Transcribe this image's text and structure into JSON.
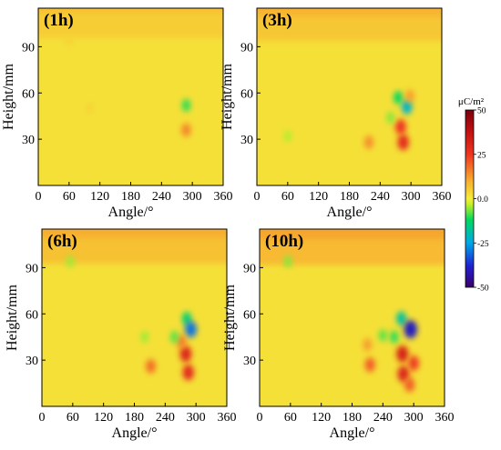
{
  "chart_data": [
    {
      "type": "heatmap",
      "title": "(1h)",
      "xlabel": "Angle/°",
      "ylabel": "Height/mm",
      "xlim": [
        0,
        360
      ],
      "ylim": [
        0,
        115
      ],
      "x_ticks": [
        0,
        60,
        120,
        180,
        240,
        300,
        360
      ],
      "y_ticks": [
        30,
        60,
        90
      ],
      "base_value": 2,
      "top_band": [
        {
          "y_from": 108,
          "y_to": 115,
          "value": 7
        },
        {
          "y_from": 98,
          "y_to": 108,
          "value": 5
        }
      ],
      "features": [
        {
          "x": 288,
          "y": 52,
          "value": -10
        },
        {
          "x": 288,
          "y": 36,
          "value": 15
        },
        {
          "x": 100,
          "y": 50,
          "value": 4
        },
        {
          "x": 60,
          "y": 94,
          "value": 4
        }
      ]
    },
    {
      "type": "heatmap",
      "title": "(3h)",
      "xlabel": "Angle/°",
      "ylabel": "Height/mm",
      "xlim": [
        0,
        360
      ],
      "ylim": [
        0,
        115
      ],
      "x_ticks": [
        0,
        60,
        120,
        180,
        240,
        300,
        360
      ],
      "y_ticks": [
        30,
        60,
        90
      ],
      "base_value": 2,
      "top_band": [
        {
          "y_from": 106,
          "y_to": 115,
          "value": 9
        },
        {
          "y_from": 96,
          "y_to": 106,
          "value": 6
        }
      ],
      "features": [
        {
          "x": 275,
          "y": 57,
          "value": -12
        },
        {
          "x": 292,
          "y": 51,
          "value": -22
        },
        {
          "x": 280,
          "y": 38,
          "value": 25
        },
        {
          "x": 285,
          "y": 28,
          "value": 28
        },
        {
          "x": 298,
          "y": 58,
          "value": 12
        },
        {
          "x": 260,
          "y": 44,
          "value": -6
        },
        {
          "x": 218,
          "y": 28,
          "value": 14
        },
        {
          "x": 60,
          "y": 32,
          "value": -4
        }
      ]
    },
    {
      "type": "heatmap",
      "title": "(6h)",
      "xlabel": "Angle/°",
      "ylabel": "Height/mm",
      "xlim": [
        0,
        360
      ],
      "ylim": [
        0,
        115
      ],
      "x_ticks": [
        0,
        60,
        120,
        180,
        240,
        300,
        360
      ],
      "y_ticks": [
        30,
        60,
        90
      ],
      "base_value": 2,
      "top_band": [
        {
          "y_from": 106,
          "y_to": 115,
          "value": 10
        },
        {
          "y_from": 95,
          "y_to": 106,
          "value": 7
        }
      ],
      "features": [
        {
          "x": 282,
          "y": 57,
          "value": -14
        },
        {
          "x": 290,
          "y": 50,
          "value": -30
        },
        {
          "x": 280,
          "y": 34,
          "value": 30
        },
        {
          "x": 285,
          "y": 22,
          "value": 28
        },
        {
          "x": 272,
          "y": 42,
          "value": 16
        },
        {
          "x": 258,
          "y": 45,
          "value": -8
        },
        {
          "x": 212,
          "y": 26,
          "value": 18
        },
        {
          "x": 200,
          "y": 45,
          "value": -5
        },
        {
          "x": 55,
          "y": 94,
          "value": -5
        }
      ]
    },
    {
      "type": "heatmap",
      "title": "(10h)",
      "xlabel": "Angle/°",
      "ylabel": "Height/mm",
      "xlim": [
        0,
        360
      ],
      "ylim": [
        0,
        115
      ],
      "x_ticks": [
        0,
        60,
        120,
        180,
        240,
        300,
        360
      ],
      "y_ticks": [
        30,
        60,
        90
      ],
      "base_value": 2,
      "top_band": [
        {
          "y_from": 105,
          "y_to": 115,
          "value": 11
        },
        {
          "y_from": 94,
          "y_to": 105,
          "value": 8
        }
      ],
      "features": [
        {
          "x": 276,
          "y": 57,
          "value": -18
        },
        {
          "x": 294,
          "y": 50,
          "value": -40
        },
        {
          "x": 278,
          "y": 34,
          "value": 32
        },
        {
          "x": 280,
          "y": 21,
          "value": 30
        },
        {
          "x": 300,
          "y": 28,
          "value": 24
        },
        {
          "x": 292,
          "y": 14,
          "value": 20
        },
        {
          "x": 262,
          "y": 45,
          "value": -10
        },
        {
          "x": 240,
          "y": 46,
          "value": -8
        },
        {
          "x": 215,
          "y": 27,
          "value": 20
        },
        {
          "x": 210,
          "y": 40,
          "value": 12
        },
        {
          "x": 55,
          "y": 94,
          "value": -6
        }
      ]
    }
  ],
  "colorbar": {
    "unit_label": "μC/m²",
    "ticks": [
      50,
      25,
      0.0,
      -25,
      -50
    ],
    "tick_labels": [
      "50",
      "25",
      "0.0",
      "-25",
      "-50"
    ],
    "range": [
      -50,
      50
    ],
    "stops": [
      {
        "value": -50,
        "color": "#3a0068"
      },
      {
        "value": -38,
        "color": "#2020d0"
      },
      {
        "value": -25,
        "color": "#00a8e8"
      },
      {
        "value": -12,
        "color": "#00d860"
      },
      {
        "value": -3,
        "color": "#c8f028"
      },
      {
        "value": 0,
        "color": "#f5ec3a"
      },
      {
        "value": 10,
        "color": "#f7ae30"
      },
      {
        "value": 25,
        "color": "#ef3520"
      },
      {
        "value": 38,
        "color": "#c01010"
      },
      {
        "value": 50,
        "color": "#7a0010"
      }
    ]
  }
}
